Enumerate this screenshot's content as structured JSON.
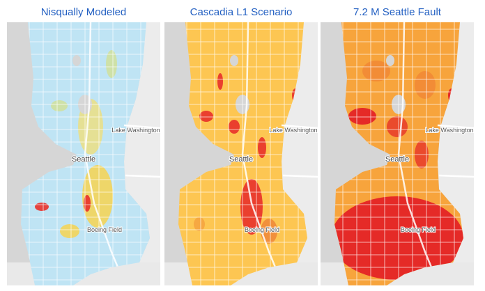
{
  "panels": [
    {
      "title": "Nisqually Modeled",
      "labels": {
        "city": "Seattle",
        "lake": "Lake Washington",
        "airport": "Boeing Field"
      }
    },
    {
      "title": "Cascadia L1 Scenario",
      "labels": {
        "city": "Seattle",
        "lake": "Lake Washington",
        "airport": "Boeing Field"
      }
    },
    {
      "title": "7.2 M Seattle Fault",
      "labels": {
        "city": "Seattle",
        "lake": "Lake Washington",
        "airport": "Boeing Field"
      }
    }
  ]
}
